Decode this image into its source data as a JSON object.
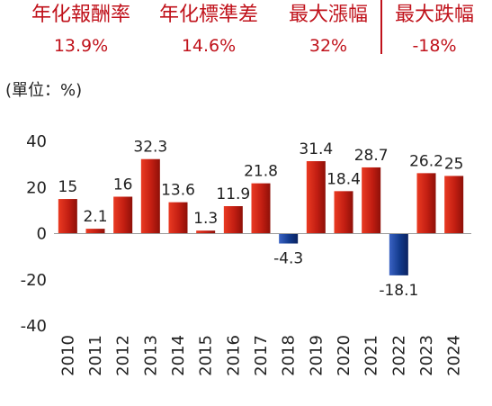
{
  "stats": [
    {
      "label": "年化報酬率",
      "value": "13.9%"
    },
    {
      "label": "年化標準差",
      "value": "14.6%"
    },
    {
      "label": "最大漲幅",
      "value": "32%"
    },
    {
      "label": "最大跌幅",
      "value": "-18%"
    }
  ],
  "unit_label": "(單位：%)",
  "colors": {
    "positive": "#c21e12",
    "negative": "#123a8c",
    "stats_text": "#c0121b"
  },
  "chart_data": {
    "type": "bar",
    "title": "",
    "xlabel": "",
    "ylabel": "(單位：%)",
    "categories": [
      "2010",
      "2011",
      "2012",
      "2013",
      "2014",
      "2015",
      "2016",
      "2017",
      "2018",
      "2019",
      "2020",
      "2021",
      "2022",
      "2023",
      "2024"
    ],
    "values": [
      15,
      2.1,
      16,
      32.3,
      13.6,
      1.3,
      11.9,
      21.8,
      -4.3,
      31.4,
      18.4,
      28.7,
      -18.1,
      26.2,
      25
    ],
    "data_labels": [
      "15",
      "2.1",
      "16",
      "32.3",
      "13.6",
      "1.3",
      "11.9",
      "21.8",
      "-4.3",
      "31.4",
      "18.4",
      "28.7",
      "-18.1",
      "26.2",
      "25"
    ],
    "ylim": [
      -40,
      40
    ],
    "yticks": [
      "40",
      "20",
      "0",
      "-20",
      "-40"
    ],
    "grid": false,
    "legend": "none"
  }
}
